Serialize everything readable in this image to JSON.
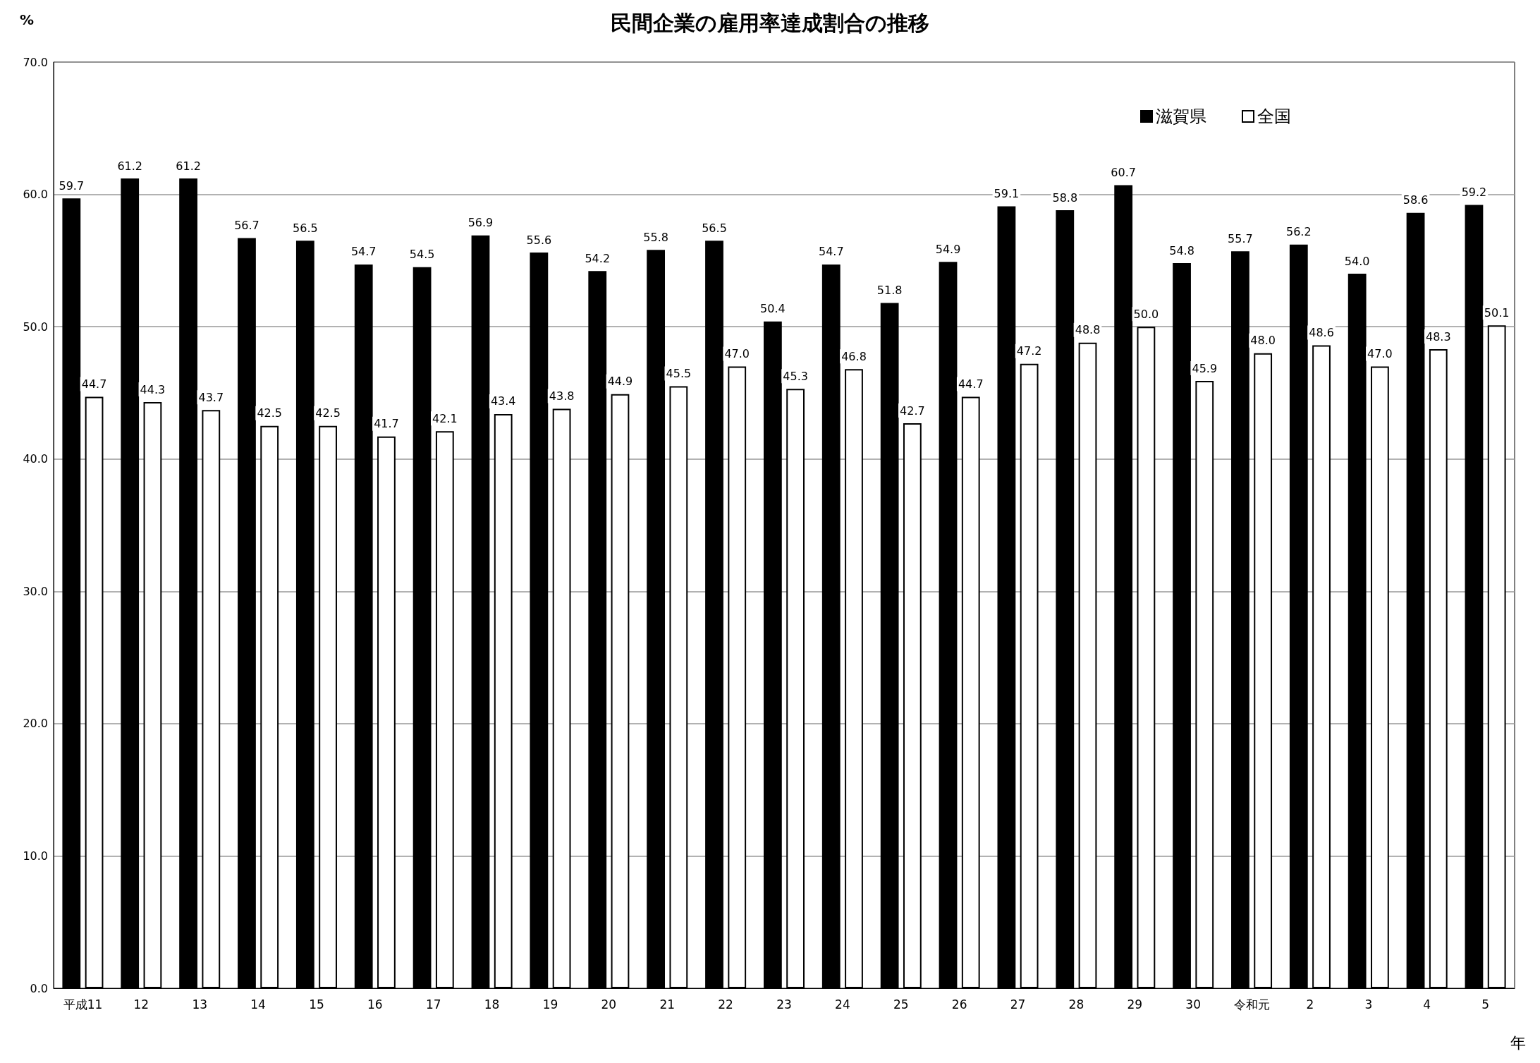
{
  "chart_data": {
    "type": "bar",
    "title": "民間企業の雇用率達成割合の推移",
    "ylabel": "%",
    "xlabel": "年",
    "categories": [
      "平成11",
      "12",
      "13",
      "14",
      "15",
      "16",
      "17",
      "18",
      "19",
      "20",
      "21",
      "22",
      "23",
      "24",
      "25",
      "26",
      "27",
      "28",
      "29",
      "30",
      "令和元",
      "2",
      "3",
      "4",
      "5"
    ],
    "series": [
      {
        "name": "滋賀県",
        "color": "#000000",
        "values": [
          59.7,
          61.2,
          61.2,
          56.7,
          56.5,
          54.7,
          54.5,
          56.9,
          55.6,
          54.2,
          55.8,
          56.5,
          50.4,
          54.7,
          51.8,
          54.9,
          59.1,
          58.8,
          60.7,
          54.8,
          55.7,
          56.2,
          54.0,
          58.6,
          59.2
        ],
        "value_labels": [
          "59.7",
          "61.2",
          "61.2",
          "56.7",
          "56.5",
          "54.7",
          "54.5",
          "56.9",
          "55.6",
          "54.2",
          "55.8",
          "56.5",
          "50.4",
          "54.7",
          "51.8",
          "54.9",
          "59.1",
          "58.8",
          "60.7",
          "54.8",
          "55.7",
          "56.2",
          "54.0",
          "58.6",
          "59.2"
        ]
      },
      {
        "name": "全国",
        "color": "#ffffff",
        "values": [
          44.7,
          44.3,
          43.7,
          42.5,
          42.5,
          41.7,
          42.1,
          43.4,
          43.8,
          44.9,
          45.5,
          47.0,
          45.3,
          46.8,
          42.7,
          44.7,
          47.2,
          48.8,
          50.0,
          45.9,
          48.0,
          48.6,
          47.0,
          48.3,
          50.1
        ],
        "value_labels": [
          "44.7",
          "44.3",
          "43.7",
          "42.5",
          "42.5",
          "41.7",
          "42.1",
          "43.4",
          "43.8",
          "44.9",
          "45.5",
          "47.0",
          "45.3",
          "46.8",
          "42.7",
          "44.7",
          "47.2",
          "48.8",
          "50.0",
          "45.9",
          "48.0",
          "48.6",
          "47.0",
          "48.3",
          "50.1"
        ]
      }
    ],
    "ylim": [
      0,
      70
    ],
    "yticks": [
      {
        "value": 0,
        "label": "0.0"
      },
      {
        "value": 10,
        "label": "10.0"
      },
      {
        "value": 20,
        "label": "20.0"
      },
      {
        "value": 30,
        "label": "30.0"
      },
      {
        "value": 40,
        "label": "40.0"
      },
      {
        "value": 50,
        "label": "50.0"
      },
      {
        "value": 60,
        "label": "60.0"
      },
      {
        "value": 70,
        "label": "70.0"
      }
    ],
    "grid": "y",
    "legend": "top right"
  }
}
